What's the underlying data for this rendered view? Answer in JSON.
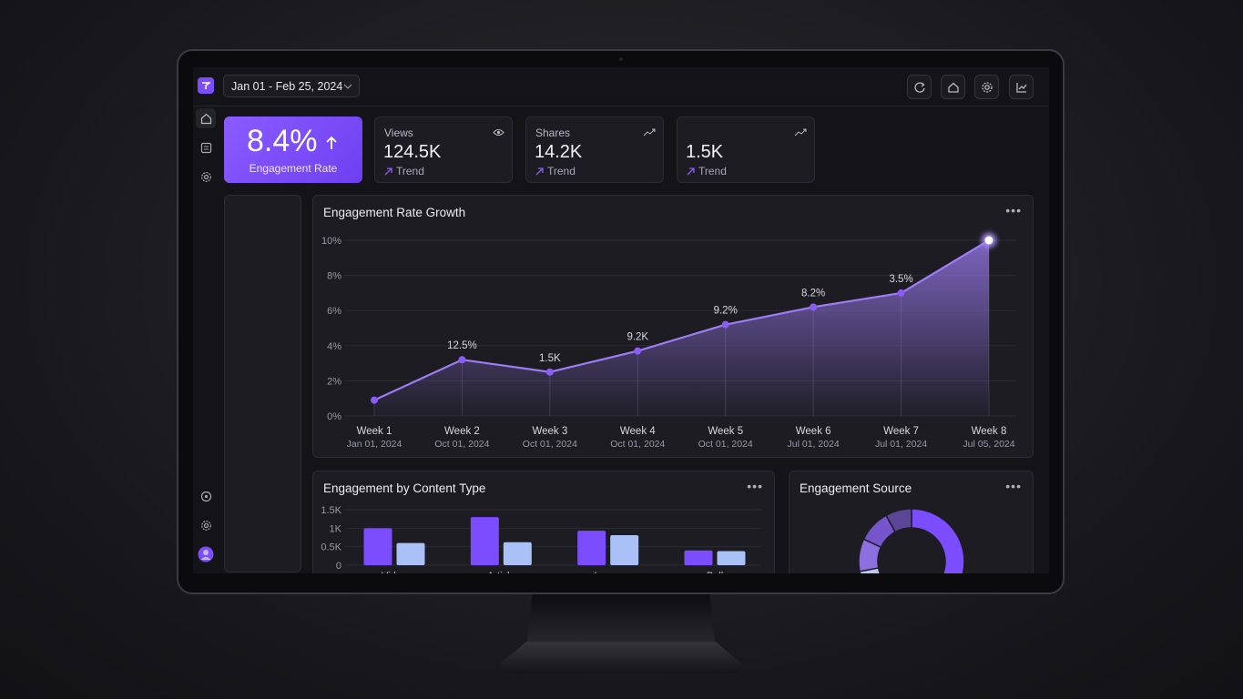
{
  "header": {
    "date_range": "Jan 01 - Feb 25, 2024"
  },
  "kpis": [
    {
      "value": "8.4%",
      "label": "Engagement Rate"
    },
    {
      "label": "Views",
      "value": "124.5K",
      "trend": "Trend"
    },
    {
      "label": "Shares",
      "value": "14.2K",
      "trend": "Trend"
    },
    {
      "value": "1.5K",
      "trend": "Trend"
    }
  ],
  "chart_data": [
    {
      "type": "line",
      "title": "Engagement Rate Growth",
      "categories": [
        "Week 1",
        "Week 2",
        "Week 3",
        "Week 4",
        "Week 5",
        "Week 6",
        "Week 7",
        "Week 8"
      ],
      "dates": [
        "Jan 01, 2024",
        "Oct 01, 2024",
        "Oct 01, 2024",
        "Oct 01, 2024",
        "Oct 01, 2024",
        "Jul 01, 2024",
        "Jul 01, 2024",
        "Jul 05, 2024"
      ],
      "values": [
        0.9,
        3.2,
        2.5,
        3.7,
        5.2,
        6.2,
        7.0,
        10.0
      ],
      "point_labels": [
        null,
        "12.5%",
        "1.5K",
        "9.2K",
        "9.2%",
        "8.2%",
        "3.5%",
        null
      ],
      "color": "#9d7cf4",
      "ylim": [
        0,
        10
      ],
      "yticks": [
        {
          "value": 0,
          "label": "0%"
        },
        {
          "value": 2,
          "label": "2%"
        },
        {
          "value": 4,
          "label": "4%"
        },
        {
          "value": 6,
          "label": "6%"
        },
        {
          "value": 8,
          "label": "8%"
        },
        {
          "value": 10,
          "label": "10%"
        }
      ],
      "grid": true
    },
    {
      "type": "bar",
      "title": "Engagement by Content Type",
      "categories": [
        "Video",
        "Article",
        "Image",
        "Poll"
      ],
      "series": [
        {
          "color": "#7c4dff",
          "values": [
            1000,
            1300,
            930,
            400
          ]
        },
        {
          "color": "#a9c1f7",
          "values": [
            600,
            620,
            810,
            380
          ]
        }
      ],
      "ylim": [
        0,
        1500
      ],
      "yticks": [
        0,
        {
          "value": 500,
          "label": "0.5K"
        },
        {
          "value": 1000,
          "label": "1K"
        },
        {
          "value": 1500,
          "label": "1.5K"
        }
      ],
      "grid": true
    },
    {
      "type": "donut",
      "title": "Engagement Source",
      "values": [
        60,
        12,
        10,
        10,
        8
      ],
      "colors": [
        "#7c4dff",
        "#b9c9f2",
        "#8d6fe0",
        "#7655cc",
        "#5a4597"
      ]
    }
  ]
}
